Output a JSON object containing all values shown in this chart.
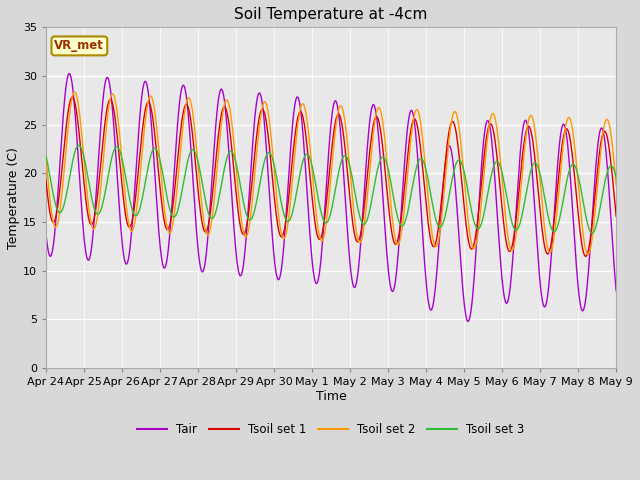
{
  "title": "Soil Temperature at -4cm",
  "xlabel": "Time",
  "ylabel": "Temperature (C)",
  "ylim": [
    0,
    35
  ],
  "yticks": [
    0,
    5,
    10,
    15,
    20,
    25,
    30,
    35
  ],
  "date_labels": [
    "Apr 24",
    "Apr 25",
    "Apr 26",
    "Apr 27",
    "Apr 28",
    "Apr 29",
    "Apr 30",
    "May 1",
    "May 2",
    "May 3",
    "May 4",
    "May 5",
    "May 6",
    "May 7",
    "May 8",
    "May 9"
  ],
  "colors": {
    "Tair": "#aa00cc",
    "Tsoil1": "#dd0000",
    "Tsoil2": "#ff9900",
    "Tsoil3": "#33bb33"
  },
  "legend_labels": [
    "Tair",
    "Tsoil set 1",
    "Tsoil set 2",
    "Tsoil set 3"
  ],
  "bg_color": "#d8d8d8",
  "plot_bg": "#e8e8e8",
  "annotation_text": "VR_met",
  "annotation_bg": "#ffffcc",
  "annotation_border": "#aa8800",
  "annotation_text_color": "#993300",
  "fig_width": 6.4,
  "fig_height": 4.8,
  "dpi": 100
}
